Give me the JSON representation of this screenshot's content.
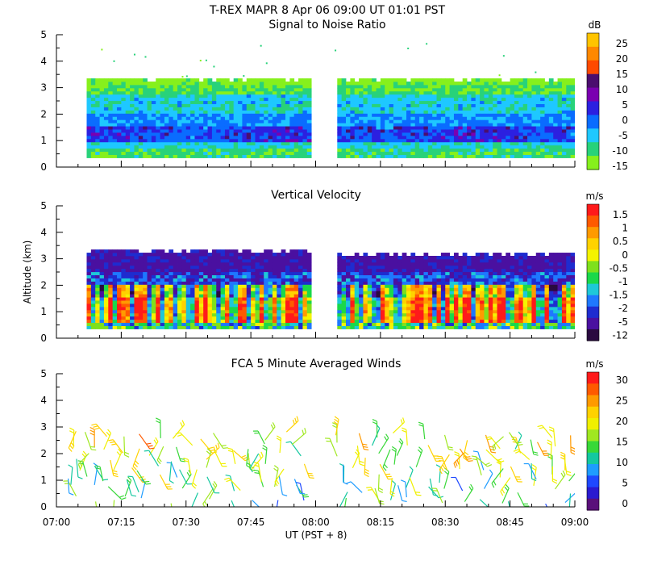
{
  "header": {
    "title": "T-REX  MAPR  8 Apr 06  09:00 UT  01:01  PST"
  },
  "chart_data": [
    {
      "type": "heatmap",
      "title": "Signal to Noise Ratio",
      "xlabel": "",
      "ylabel": "",
      "ylim": [
        0,
        5
      ],
      "yticks": [
        "0",
        "1",
        "2",
        "3",
        "4",
        "5"
      ],
      "colorbar": {
        "unit": "dB",
        "ticks": [
          "25",
          "20",
          "15",
          "10",
          "5",
          "0",
          "-5",
          "-10",
          "-15"
        ],
        "colors": [
          "#ffc400",
          "#ff8800",
          "#ff4a00",
          "#4b0e6e",
          "#7a00b0",
          "#2c20e0",
          "#0a6cff",
          "#1ec8ff",
          "#28d27a",
          "#86f01c"
        ]
      },
      "data_extent": {
        "segments": [
          {
            "start": "07:07",
            "end": "07:59"
          },
          {
            "start": "08:05",
            "end": "09:00"
          }
        ],
        "altitude_km": [
          0.35,
          3.3
        ]
      }
    },
    {
      "type": "heatmap",
      "title": "Vertical Velocity",
      "ylabel": "Altitude (km)",
      "ylim": [
        0,
        5
      ],
      "yticks": [
        "0",
        "1",
        "2",
        "3",
        "4",
        "5"
      ],
      "colorbar": {
        "unit": "m/s",
        "ticks": [
          "1.5",
          "1",
          "0.5",
          "0",
          "-0.5",
          "-1",
          "-1.5",
          "-2",
          "-5",
          "-12"
        ],
        "colors": [
          "#ff1a1a",
          "#ff5a00",
          "#ff9a00",
          "#ffd200",
          "#f4f400",
          "#7ee01c",
          "#1ad84a",
          "#1ec8d8",
          "#1e78ff",
          "#1e2cd0",
          "#4a10a0",
          "#2a0a40"
        ]
      },
      "data_extent": {
        "segments": [
          {
            "start": "07:07",
            "end": "07:59"
          },
          {
            "start": "08:05",
            "end": "09:00"
          }
        ],
        "altitude_km": [
          0.35,
          3.3
        ]
      }
    },
    {
      "type": "scatter",
      "title": "FCA 5 Minute Averaged Winds",
      "xlabel": "UT  (PST + 8)",
      "ylim": [
        0,
        5
      ],
      "yticks": [
        "0",
        "1",
        "2",
        "3",
        "4",
        "5"
      ],
      "xticks": [
        "07:00",
        "07:15",
        "07:30",
        "07:45",
        "08:00",
        "08:15",
        "08:30",
        "08:45",
        "09:00"
      ],
      "colorbar": {
        "unit": "m/s",
        "ticks": [
          "30",
          "25",
          "20",
          "15",
          "10",
          "5",
          "0"
        ],
        "colors": [
          "#ff1a1a",
          "#ff5a00",
          "#ff9a00",
          "#ffd200",
          "#f0f000",
          "#a0e820",
          "#38d838",
          "#14c8a0",
          "#1e9cff",
          "#1e48ff",
          "#2a1ad0",
          "#5a107a"
        ]
      },
      "barb_times": [
        "07:04",
        "07:08",
        "07:12",
        "07:16",
        "07:20",
        "07:24",
        "07:28",
        "07:32",
        "07:36",
        "07:40",
        "07:44",
        "07:48",
        "07:52",
        "07:56",
        "08:06",
        "08:10",
        "08:14",
        "08:18",
        "08:22",
        "08:26",
        "08:30",
        "08:34",
        "08:38",
        "08:42",
        "08:46",
        "08:50",
        "08:54",
        "08:58"
      ],
      "barb_altitudes_km": [
        0.1,
        0.5,
        0.9,
        1.3,
        1.7,
        2.1,
        2.5
      ]
    }
  ]
}
